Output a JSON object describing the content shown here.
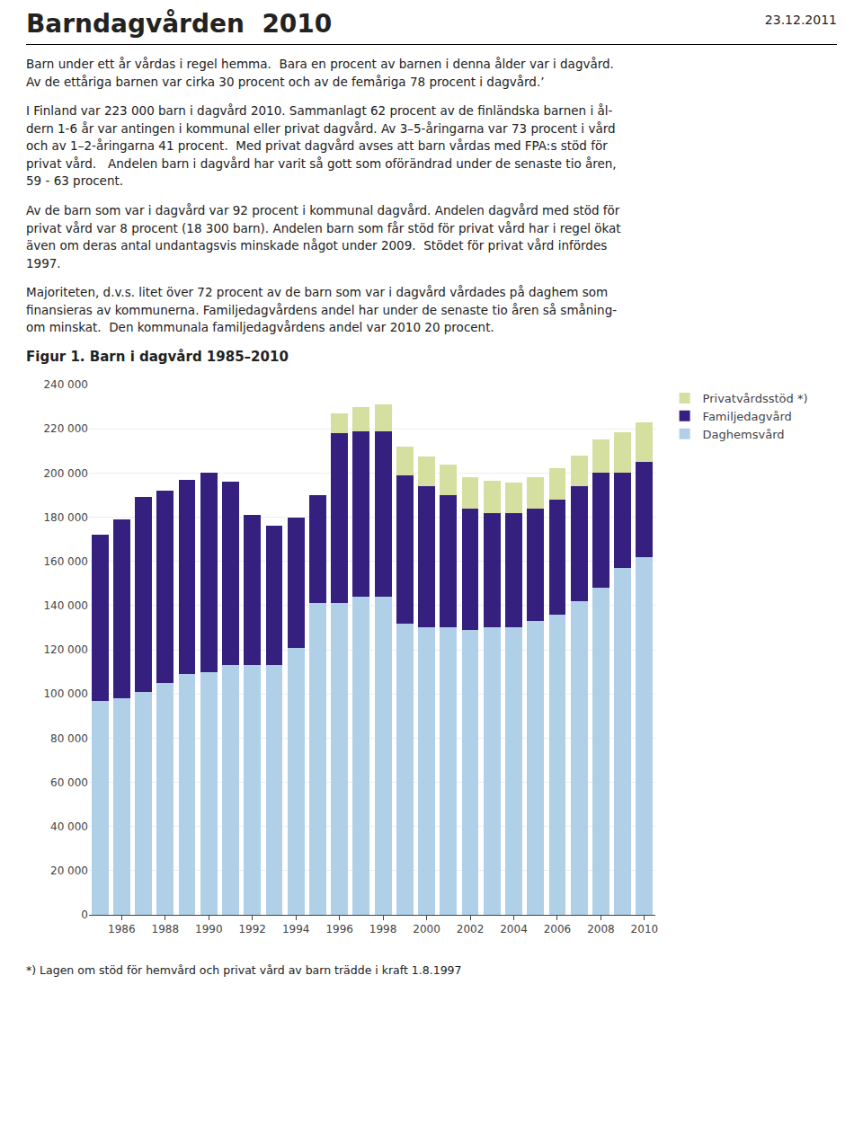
{
  "chart_data": {
    "type": "bar",
    "stacked": true,
    "title": "Barndagvården  2010",
    "subtitle": "Figur 1. Barn i dagvård 1985–2010",
    "annotations": [
      "23.12.2011",
      "Barn under ett år vårdas i regel hemma.  Bara en procent av barnen i denna ålder var i dagvård.\nAv de ettåriga barnen var cirka 30 procent och av de femåriga 78 procent i dagvård.’",
      "I Finland var 223 000 barn i dagvård 2010. Sammanlagt 62 procent av de finländska barnen i ål-\ndern 1-6 år var antingen i kommunal eller privat dagvård. Av 3–5-åringarna var 73 procent i vård\noch av 1–2-åringarna 41 procent.  Med privat dagvård avses att barn vårdas med FPA:s stöd för\nprivat vård.   Andelen barn i dagvård har varit så gott som oförändrad under de senaste tio åren,\n59 - 63 procent.",
      "Av de barn som var i dagvård var 92 procent i kommunal dagvård. Andelen dagvård med stöd för\nprivat vård var 8 procent (18 300 barn). Andelen barn som får stöd för privat vård har i regel ökat\näven om deras antal undantagsvis minskade något under 2009.  Stödet för privat vård infördes\n1997.",
      "Majoriteten, d.v.s. litet över 72 procent av de barn som var i dagvård vårdades på daghem som\nfinansieras av kommunerna. Familjedagvårdens andel har under de senaste tio åren så småning-\nom minskat.  Den kommunala familjedagvårdens andel var 2010 20 procent.",
      "*) Lagen om stöd för hemvård och privat vård av barn trädde i kraft 1.8.1997"
    ],
    "categories": [
      null,
      "1986",
      null,
      "1988",
      null,
      "1990",
      null,
      "1992",
      null,
      "1994",
      null,
      "1996",
      null,
      "1998",
      null,
      "2000",
      null,
      "2002",
      null,
      "2004",
      null,
      "2006",
      null,
      "2008",
      null,
      "2010"
    ],
    "series": [
      {
        "name": "Daghemsvård",
        "color": "#b0d0e8",
        "values": [
          97000,
          98000,
          101000,
          105000,
          109000,
          110000,
          113000,
          113000,
          113000,
          121000,
          141000,
          141000,
          144000,
          144000,
          132000,
          130000,
          130000,
          129000,
          130000,
          130000,
          133000,
          136000,
          142000,
          148000,
          157000,
          162000
        ]
      },
      {
        "name": "Familjedagvård",
        "color": "#352080",
        "values": [
          75000,
          81000,
          88000,
          87000,
          88000,
          90000,
          83000,
          68000,
          63000,
          59000,
          49000,
          77000,
          75000,
          75000,
          67000,
          64000,
          60000,
          55000,
          52000,
          52000,
          51000,
          52000,
          52000,
          52000,
          43000,
          43000
        ]
      },
      {
        "name": "Privatvårdsstöd *)",
        "color": "#d4dfa0",
        "values": [
          0,
          0,
          0,
          0,
          0,
          0,
          0,
          0,
          0,
          0,
          0,
          9000,
          11000,
          12000,
          13000,
          13500,
          14000,
          14000,
          14500,
          13500,
          14000,
          14000,
          14000,
          15000,
          18500,
          18000
        ]
      }
    ],
    "ylim": [
      0,
      240000
    ],
    "yticks": [
      0,
      {
        "value": 20000,
        "label": "20 000"
      },
      {
        "value": 40000,
        "label": "40 000"
      },
      {
        "value": 60000,
        "label": "60 000"
      },
      {
        "value": 80000,
        "label": "80 000"
      },
      {
        "value": 100000,
        "label": "100 000"
      },
      {
        "value": 120000,
        "label": "120 000"
      },
      {
        "value": 140000,
        "label": "140 000"
      },
      {
        "value": 160000,
        "label": "160 000"
      },
      {
        "value": 180000,
        "label": "180 000"
      },
      {
        "value": 200000,
        "label": "200 000"
      },
      {
        "value": 220000,
        "label": "220 000"
      },
      {
        "value": 240000,
        "label": "240 000"
      }
    ],
    "grid": true,
    "legend": "right"
  }
}
